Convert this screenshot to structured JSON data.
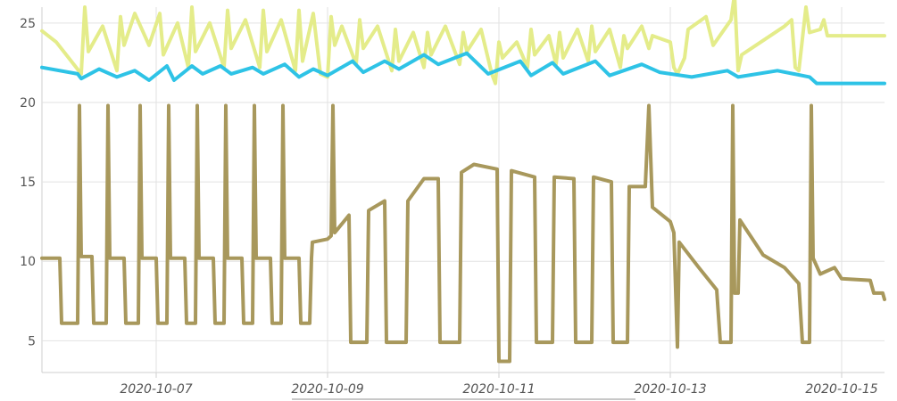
{
  "chart_data": {
    "type": "line",
    "title": "",
    "xlabel": "",
    "ylabel": "",
    "grid": true,
    "legend": "none",
    "xlim": [
      "2020-10-05T16:00",
      "2020-10-15T12:00"
    ],
    "ylim": [
      3,
      26
    ],
    "y_ticks": [
      5,
      10,
      15,
      20,
      25
    ],
    "x_ticks": [
      "2020-10-07",
      "2020-10-09",
      "2020-10-11",
      "2020-10-13",
      "2020-10-15"
    ],
    "series": [
      {
        "color": "#e4ec8a",
        "style": "sawtooth",
        "points": [
          [
            "2020-10-05T16:00",
            24.5
          ],
          [
            "2020-10-05T20:00",
            23.8
          ],
          [
            "2020-10-06T03:00",
            21.8
          ],
          [
            "2020-10-06T04:00",
            26.0
          ],
          [
            "2020-10-06T05:00",
            23.2
          ],
          [
            "2020-10-06T09:00",
            24.8
          ],
          [
            "2020-10-06T13:00",
            22.0
          ],
          [
            "2020-10-06T14:00",
            25.4
          ],
          [
            "2020-10-06T15:00",
            23.6
          ],
          [
            "2020-10-06T18:00",
            25.6
          ],
          [
            "2020-10-06T22:00",
            23.6
          ],
          [
            "2020-10-07T01:00",
            25.6
          ],
          [
            "2020-10-07T02:00",
            23.0
          ],
          [
            "2020-10-07T06:00",
            25.0
          ],
          [
            "2020-10-07T09:00",
            22.2
          ],
          [
            "2020-10-07T10:00",
            26.0
          ],
          [
            "2020-10-07T11:00",
            23.2
          ],
          [
            "2020-10-07T15:00",
            25.0
          ],
          [
            "2020-10-07T19:00",
            22.2
          ],
          [
            "2020-10-07T20:00",
            25.8
          ],
          [
            "2020-10-07T21:00",
            23.4
          ],
          [
            "2020-10-08T01:00",
            25.2
          ],
          [
            "2020-10-08T05:00",
            22.2
          ],
          [
            "2020-10-08T06:00",
            25.8
          ],
          [
            "2020-10-08T07:00",
            23.2
          ],
          [
            "2020-10-08T11:00",
            25.2
          ],
          [
            "2020-10-08T15:00",
            22.0
          ],
          [
            "2020-10-08T16:00",
            25.8
          ],
          [
            "2020-10-08T17:00",
            22.6
          ],
          [
            "2020-10-08T20:00",
            25.6
          ],
          [
            "2020-10-08T22:00",
            21.8
          ],
          [
            "2020-10-09T00:00",
            21.6
          ],
          [
            "2020-10-09T01:00",
            25.4
          ],
          [
            "2020-10-09T02:00",
            23.6
          ],
          [
            "2020-10-09T04:00",
            24.8
          ],
          [
            "2020-10-09T08:00",
            22.4
          ],
          [
            "2020-10-09T09:00",
            25.2
          ],
          [
            "2020-10-09T10:00",
            23.4
          ],
          [
            "2020-10-09T14:00",
            24.8
          ],
          [
            "2020-10-09T18:00",
            22.0
          ],
          [
            "2020-10-09T19:00",
            24.6
          ],
          [
            "2020-10-09T20:00",
            22.6
          ],
          [
            "2020-10-10T00:00",
            24.4
          ],
          [
            "2020-10-10T03:00",
            22.2
          ],
          [
            "2020-10-10T04:00",
            24.4
          ],
          [
            "2020-10-10T05:00",
            23.0
          ],
          [
            "2020-10-10T09:00",
            24.8
          ],
          [
            "2020-10-10T13:00",
            22.4
          ],
          [
            "2020-10-10T14:00",
            24.4
          ],
          [
            "2020-10-10T15:00",
            23.2
          ],
          [
            "2020-10-10T19:00",
            24.6
          ],
          [
            "2020-10-10T22:00",
            21.8
          ],
          [
            "2020-10-10T23:00",
            21.2
          ],
          [
            "2020-10-11T00:00",
            23.8
          ],
          [
            "2020-10-11T01:00",
            22.8
          ],
          [
            "2020-10-11T05:00",
            23.8
          ],
          [
            "2020-10-11T08:00",
            22.2
          ],
          [
            "2020-10-11T09:00",
            24.6
          ],
          [
            "2020-10-11T10:00",
            23.0
          ],
          [
            "2020-10-11T14:00",
            24.2
          ],
          [
            "2020-10-11T16:00",
            22.4
          ],
          [
            "2020-10-11T17:00",
            24.4
          ],
          [
            "2020-10-11T18:00",
            22.8
          ],
          [
            "2020-10-11T22:00",
            24.6
          ],
          [
            "2020-10-12T01:00",
            22.6
          ],
          [
            "2020-10-12T02:00",
            24.8
          ],
          [
            "2020-10-12T03:00",
            23.2
          ],
          [
            "2020-10-12T07:00",
            24.6
          ],
          [
            "2020-10-12T10:00",
            22.2
          ],
          [
            "2020-10-12T11:00",
            24.2
          ],
          [
            "2020-10-12T12:00",
            23.4
          ],
          [
            "2020-10-12T16:00",
            24.8
          ],
          [
            "2020-10-12T18:00",
            23.4
          ],
          [
            "2020-10-12T19:00",
            24.2
          ],
          [
            "2020-10-13T00:00",
            23.8
          ],
          [
            "2020-10-13T01:00",
            22.2
          ],
          [
            "2020-10-13T02:00",
            21.8
          ],
          [
            "2020-10-13T04:00",
            22.8
          ],
          [
            "2020-10-13T05:00",
            24.6
          ],
          [
            "2020-10-13T10:00",
            25.4
          ],
          [
            "2020-10-13T12:00",
            23.6
          ],
          [
            "2020-10-13T17:00",
            25.2
          ],
          [
            "2020-10-13T18:00",
            26.8
          ],
          [
            "2020-10-13T19:00",
            22.0
          ],
          [
            "2020-10-13T20:00",
            23.0
          ],
          [
            "2020-10-14T00:00",
            23.6
          ],
          [
            "2020-10-14T08:00",
            24.8
          ],
          [
            "2020-10-14T10:00",
            25.2
          ],
          [
            "2020-10-14T11:00",
            22.2
          ],
          [
            "2020-10-14T12:00",
            22.0
          ],
          [
            "2020-10-14T13:00",
            24.0
          ],
          [
            "2020-10-14T14:00",
            26.0
          ],
          [
            "2020-10-14T15:00",
            24.4
          ],
          [
            "2020-10-14T18:00",
            24.6
          ],
          [
            "2020-10-14T19:00",
            25.2
          ],
          [
            "2020-10-14T20:00",
            24.2
          ],
          [
            "2020-10-15T12:00",
            24.2
          ]
        ]
      },
      {
        "color": "#2ec3e6",
        "style": "sawtooth",
        "points": [
          [
            "2020-10-05T16:00",
            22.2
          ],
          [
            "2020-10-06T02:00",
            21.8
          ],
          [
            "2020-10-06T03:00",
            21.5
          ],
          [
            "2020-10-06T08:00",
            22.1
          ],
          [
            "2020-10-06T13:00",
            21.6
          ],
          [
            "2020-10-06T18:00",
            22.0
          ],
          [
            "2020-10-06T22:00",
            21.4
          ],
          [
            "2020-10-07T03:00",
            22.3
          ],
          [
            "2020-10-07T05:00",
            21.4
          ],
          [
            "2020-10-07T10:00",
            22.3
          ],
          [
            "2020-10-07T13:00",
            21.8
          ],
          [
            "2020-10-07T18:00",
            22.3
          ],
          [
            "2020-10-07T21:00",
            21.8
          ],
          [
            "2020-10-08T03:00",
            22.2
          ],
          [
            "2020-10-08T06:00",
            21.8
          ],
          [
            "2020-10-08T12:00",
            22.4
          ],
          [
            "2020-10-08T16:00",
            21.6
          ],
          [
            "2020-10-08T20:00",
            22.1
          ],
          [
            "2020-10-09T00:00",
            21.7
          ],
          [
            "2020-10-09T07:00",
            22.6
          ],
          [
            "2020-10-09T10:00",
            21.9
          ],
          [
            "2020-10-09T16:00",
            22.6
          ],
          [
            "2020-10-09T20:00",
            22.1
          ],
          [
            "2020-10-10T03:00",
            23.0
          ],
          [
            "2020-10-10T07:00",
            22.4
          ],
          [
            "2020-10-10T15:00",
            23.1
          ],
          [
            "2020-10-10T21:00",
            21.8
          ],
          [
            "2020-10-11T06:00",
            22.6
          ],
          [
            "2020-10-11T09:00",
            21.7
          ],
          [
            "2020-10-11T15:00",
            22.5
          ],
          [
            "2020-10-11T18:00",
            21.8
          ],
          [
            "2020-10-12T03:00",
            22.6
          ],
          [
            "2020-10-12T07:00",
            21.7
          ],
          [
            "2020-10-12T16:00",
            22.4
          ],
          [
            "2020-10-12T21:00",
            21.9
          ],
          [
            "2020-10-13T06:00",
            21.6
          ],
          [
            "2020-10-13T16:00",
            22.0
          ],
          [
            "2020-10-13T19:00",
            21.6
          ],
          [
            "2020-10-14T06:00",
            22.0
          ],
          [
            "2020-10-14T15:00",
            21.6
          ],
          [
            "2020-10-14T17:00",
            21.2
          ],
          [
            "2020-10-15T12:00",
            21.2
          ]
        ]
      },
      {
        "color": "#a8985c",
        "style": "step",
        "points": [
          [
            "2020-10-05T16:00",
            10.2
          ],
          [
            "2020-10-05T21:00",
            10.2
          ],
          [
            "2020-10-05T21:30",
            6.1
          ],
          [
            "2020-10-06T02:00",
            6.1
          ],
          [
            "2020-10-06T02:30",
            19.8
          ],
          [
            "2020-10-06T03:00",
            10.3
          ],
          [
            "2020-10-06T06:00",
            10.3
          ],
          [
            "2020-10-06T06:30",
            6.1
          ],
          [
            "2020-10-06T10:00",
            6.1
          ],
          [
            "2020-10-06T10:30",
            19.8
          ],
          [
            "2020-10-06T11:00",
            10.2
          ],
          [
            "2020-10-06T15:00",
            10.2
          ],
          [
            "2020-10-06T15:30",
            6.1
          ],
          [
            "2020-10-06T19:00",
            6.1
          ],
          [
            "2020-10-06T19:30",
            19.8
          ],
          [
            "2020-10-06T20:00",
            10.2
          ],
          [
            "2020-10-07T00:00",
            10.2
          ],
          [
            "2020-10-07T00:30",
            6.1
          ],
          [
            "2020-10-07T03:00",
            6.1
          ],
          [
            "2020-10-07T03:30",
            19.8
          ],
          [
            "2020-10-07T04:00",
            10.2
          ],
          [
            "2020-10-07T08:00",
            10.2
          ],
          [
            "2020-10-07T08:30",
            6.1
          ],
          [
            "2020-10-07T11:00",
            6.1
          ],
          [
            "2020-10-07T11:30",
            19.8
          ],
          [
            "2020-10-07T12:00",
            10.2
          ],
          [
            "2020-10-07T16:00",
            10.2
          ],
          [
            "2020-10-07T16:30",
            6.1
          ],
          [
            "2020-10-07T19:00",
            6.1
          ],
          [
            "2020-10-07T19:30",
            19.8
          ],
          [
            "2020-10-07T20:00",
            10.2
          ],
          [
            "2020-10-08T00:00",
            10.2
          ],
          [
            "2020-10-08T00:30",
            6.1
          ],
          [
            "2020-10-08T03:00",
            6.1
          ],
          [
            "2020-10-08T03:30",
            19.8
          ],
          [
            "2020-10-08T04:00",
            10.2
          ],
          [
            "2020-10-08T08:00",
            10.2
          ],
          [
            "2020-10-08T08:30",
            6.1
          ],
          [
            "2020-10-08T11:00",
            6.1
          ],
          [
            "2020-10-08T11:30",
            19.8
          ],
          [
            "2020-10-08T12:00",
            10.2
          ],
          [
            "2020-10-08T16:00",
            10.2
          ],
          [
            "2020-10-08T16:30",
            6.1
          ],
          [
            "2020-10-08T19:00",
            6.1
          ],
          [
            "2020-10-08T19:30",
            10.2
          ],
          [
            "2020-10-08T19:45",
            11.2
          ],
          [
            "2020-10-09T00:00",
            11.4
          ],
          [
            "2020-10-09T01:00",
            11.6
          ],
          [
            "2020-10-09T01:30",
            19.8
          ],
          [
            "2020-10-09T02:00",
            11.8
          ],
          [
            "2020-10-09T06:00",
            12.9
          ],
          [
            "2020-10-09T06:30",
            4.9
          ],
          [
            "2020-10-09T11:00",
            4.9
          ],
          [
            "2020-10-09T11:30",
            13.2
          ],
          [
            "2020-10-09T16:00",
            13.8
          ],
          [
            "2020-10-09T16:30",
            4.9
          ],
          [
            "2020-10-09T22:00",
            4.9
          ],
          [
            "2020-10-09T22:30",
            13.8
          ],
          [
            "2020-10-10T03:00",
            15.2
          ],
          [
            "2020-10-10T07:00",
            15.2
          ],
          [
            "2020-10-10T07:30",
            4.9
          ],
          [
            "2020-10-10T13:00",
            4.9
          ],
          [
            "2020-10-10T13:30",
            15.6
          ],
          [
            "2020-10-10T17:00",
            16.1
          ],
          [
            "2020-10-10T23:30",
            15.8
          ],
          [
            "2020-10-11T00:00",
            3.7
          ],
          [
            "2020-10-11T03:00",
            3.7
          ],
          [
            "2020-10-11T03:30",
            15.7
          ],
          [
            "2020-10-11T10:00",
            15.3
          ],
          [
            "2020-10-11T10:30",
            4.9
          ],
          [
            "2020-10-11T15:00",
            4.9
          ],
          [
            "2020-10-11T15:30",
            15.3
          ],
          [
            "2020-10-11T21:00",
            15.2
          ],
          [
            "2020-10-11T21:30",
            4.9
          ],
          [
            "2020-10-12T02:00",
            4.9
          ],
          [
            "2020-10-12T02:30",
            15.3
          ],
          [
            "2020-10-12T07:30",
            15.0
          ],
          [
            "2020-10-12T08:00",
            4.9
          ],
          [
            "2020-10-12T12:00",
            4.9
          ],
          [
            "2020-10-12T12:30",
            14.7
          ],
          [
            "2020-10-12T17:00",
            14.7
          ],
          [
            "2020-10-12T18:00",
            19.8
          ],
          [
            "2020-10-12T19:00",
            13.4
          ],
          [
            "2020-10-13T00:00",
            12.5
          ],
          [
            "2020-10-13T01:00",
            11.8
          ],
          [
            "2020-10-13T02:00",
            4.6
          ],
          [
            "2020-10-13T02:30",
            11.2
          ],
          [
            "2020-10-13T08:00",
            9.6
          ],
          [
            "2020-10-13T13:00",
            8.2
          ],
          [
            "2020-10-13T14:00",
            4.9
          ],
          [
            "2020-10-13T17:00",
            4.9
          ],
          [
            "2020-10-13T17:30",
            19.8
          ],
          [
            "2020-10-13T18:00",
            8.0
          ],
          [
            "2020-10-13T19:00",
            8.0
          ],
          [
            "2020-10-13T19:30",
            12.6
          ],
          [
            "2020-10-14T02:00",
            10.4
          ],
          [
            "2020-10-14T08:00",
            9.6
          ],
          [
            "2020-10-14T12:00",
            8.6
          ],
          [
            "2020-10-14T13:00",
            4.9
          ],
          [
            "2020-10-14T15:00",
            4.9
          ],
          [
            "2020-10-14T15:30",
            19.8
          ],
          [
            "2020-10-14T16:00",
            10.2
          ],
          [
            "2020-10-14T18:00",
            9.2
          ],
          [
            "2020-10-14T22:00",
            9.6
          ],
          [
            "2020-10-15T00:00",
            8.9
          ],
          [
            "2020-10-15T08:00",
            8.8
          ],
          [
            "2020-10-15T09:00",
            8.0
          ],
          [
            "2020-10-15T11:30",
            8.0
          ],
          [
            "2020-10-15T12:00",
            7.6
          ]
        ]
      }
    ]
  }
}
